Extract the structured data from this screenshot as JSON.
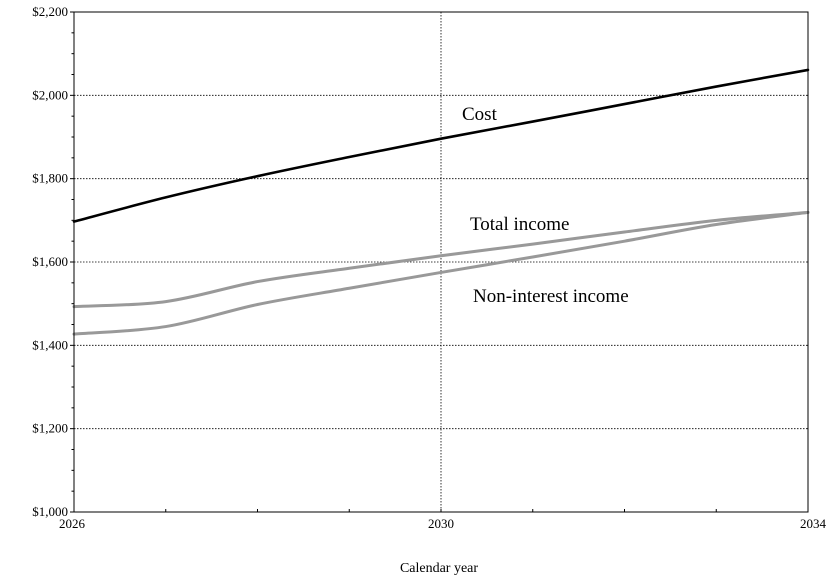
{
  "chart_data": {
    "type": "line",
    "title": "",
    "xlabel": "Calendar year",
    "ylabel": "",
    "xlim": [
      2026,
      2034
    ],
    "ylim": [
      1000,
      2200
    ],
    "x_ticks": [
      2026,
      2030,
      2034
    ],
    "x_tick_labels": [
      "2026",
      "2030",
      "2034"
    ],
    "y_ticks": [
      1000,
      1200,
      1400,
      1600,
      1800,
      2000,
      2200
    ],
    "y_tick_labels": [
      "$1,000",
      "$1,200",
      "$1,400",
      "$1,600",
      "$1,800",
      "$2,000",
      "$2,200"
    ],
    "grid": "horizontal dotted at y ticks, vertical dotted at 2030",
    "legend": "none (inline labels)",
    "series": [
      {
        "name": "Cost",
        "color": "#000000",
        "points": [
          [
            2026,
            1697
          ],
          [
            2027,
            1755
          ],
          [
            2028,
            1806
          ],
          [
            2029,
            1852
          ],
          [
            2030,
            1896
          ],
          [
            2031,
            1937
          ],
          [
            2032,
            1979
          ],
          [
            2033,
            2021
          ],
          [
            2034,
            2061
          ]
        ]
      },
      {
        "name": "Total income",
        "color": "#999999",
        "points": [
          [
            2026,
            1493
          ],
          [
            2027,
            1505
          ],
          [
            2028,
            1553
          ],
          [
            2029,
            1585
          ],
          [
            2030,
            1615
          ],
          [
            2031,
            1643
          ],
          [
            2032,
            1672
          ],
          [
            2033,
            1700
          ],
          [
            2034,
            1719
          ]
        ]
      },
      {
        "name": "Non-interest income",
        "color": "#999999",
        "points": [
          [
            2026,
            1427
          ],
          [
            2027,
            1445
          ],
          [
            2028,
            1498
          ],
          [
            2029,
            1537
          ],
          [
            2030,
            1575
          ],
          [
            2031,
            1612
          ],
          [
            2032,
            1650
          ],
          [
            2033,
            1690
          ],
          [
            2034,
            1719
          ]
        ]
      }
    ]
  }
}
